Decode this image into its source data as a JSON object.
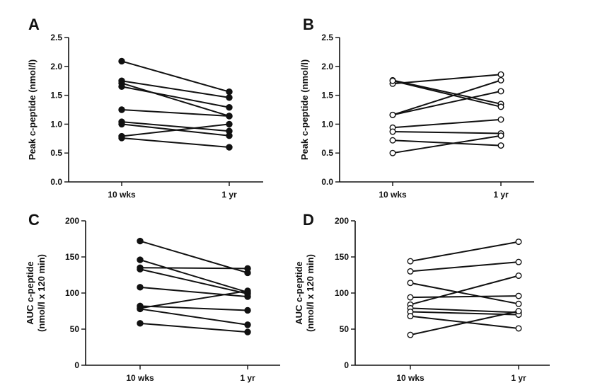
{
  "chart_data": [
    {
      "panel": "A",
      "type": "line",
      "marker": "filled",
      "categories": [
        "10 wks",
        "1 yr"
      ],
      "ylabel": [
        "Peak c-peptide (nmol/l)"
      ],
      "ylim": [
        0,
        2.5
      ],
      "yticks": [
        "0.0",
        "0.5",
        "1.0",
        "1.5",
        "2.0",
        "2.5"
      ],
      "series": [
        {
          "values": [
            2.09,
            1.56
          ]
        },
        {
          "values": [
            1.75,
            1.46
          ]
        },
        {
          "values": [
            1.71,
            1.14
          ]
        },
        {
          "values": [
            1.65,
            1.29
          ]
        },
        {
          "values": [
            1.25,
            1.14
          ]
        },
        {
          "values": [
            1.04,
            0.88
          ]
        },
        {
          "values": [
            1.0,
            0.8
          ]
        },
        {
          "values": [
            0.79,
            1.0
          ]
        },
        {
          "values": [
            0.76,
            0.6
          ]
        }
      ]
    },
    {
      "panel": "B",
      "type": "line",
      "marker": "open",
      "categories": [
        "10 wks",
        "1 yr"
      ],
      "ylabel": [
        "Peak c-peptide (nmol/l)"
      ],
      "ylim": [
        0,
        2.5
      ],
      "yticks": [
        "0.0",
        "0.5",
        "1.0",
        "1.5",
        "2.0",
        "2.5"
      ],
      "series": [
        {
          "values": [
            1.76,
            1.35
          ]
        },
        {
          "values": [
            1.7,
            1.86
          ]
        },
        {
          "values": [
            1.16,
            1.76
          ]
        },
        {
          "values": [
            1.16,
            1.57
          ]
        },
        {
          "values": [
            1.75,
            1.3
          ]
        },
        {
          "values": [
            0.94,
            1.08
          ]
        },
        {
          "values": [
            0.87,
            0.84
          ]
        },
        {
          "values": [
            0.72,
            0.63
          ]
        },
        {
          "values": [
            0.5,
            0.8
          ]
        }
      ]
    },
    {
      "panel": "C",
      "type": "line",
      "marker": "filled",
      "categories": [
        "10 wks",
        "1 yr"
      ],
      "ylabel": [
        "AUC c-peptide",
        "(nmol/l x 120 min)"
      ],
      "ylim": [
        0,
        200
      ],
      "yticks": [
        "0",
        "50",
        "100",
        "150",
        "200"
      ],
      "series": [
        {
          "values": [
            172,
            128
          ]
        },
        {
          "values": [
            146,
            101
          ]
        },
        {
          "values": [
            135,
            134
          ]
        },
        {
          "values": [
            133,
            99
          ]
        },
        {
          "values": [
            108,
            95
          ]
        },
        {
          "values": [
            82,
            76
          ]
        },
        {
          "values": [
            79,
            103
          ]
        },
        {
          "values": [
            78,
            56
          ]
        },
        {
          "values": [
            58,
            46
          ]
        }
      ]
    },
    {
      "panel": "D",
      "type": "line",
      "marker": "open",
      "categories": [
        "10 wks",
        "1 yr"
      ],
      "ylabel": [
        "AUC c-peptide",
        "(nmol/l x 120 min)"
      ],
      "ylim": [
        0,
        200
      ],
      "yticks": [
        "0",
        "50",
        "100",
        "150",
        "200"
      ],
      "series": [
        {
          "values": [
            144,
            171
          ]
        },
        {
          "values": [
            130,
            143
          ]
        },
        {
          "values": [
            114,
            85
          ]
        },
        {
          "values": [
            94,
            96
          ]
        },
        {
          "values": [
            84,
            124
          ]
        },
        {
          "values": [
            79,
            73
          ]
        },
        {
          "values": [
            74,
            70
          ]
        },
        {
          "values": [
            68,
            51
          ]
        },
        {
          "values": [
            42,
            75
          ]
        }
      ]
    }
  ]
}
